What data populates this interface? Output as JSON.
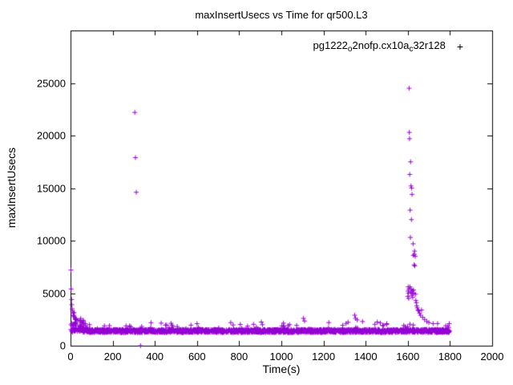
{
  "chart_data": {
    "type": "scatter",
    "title": "maxInsertUsecs vs Time for qr500.L3",
    "xlabel": "Time(s)",
    "ylabel": "maxInsertUsecs",
    "xlim": [
      0,
      2000
    ],
    "ylim": [
      0,
      30000
    ],
    "xticks": [
      0,
      200,
      400,
      600,
      800,
      1000,
      1200,
      1400,
      1600,
      1800,
      2000
    ],
    "yticks": [
      0,
      5000,
      10000,
      15000,
      20000,
      25000
    ],
    "grid": false,
    "legend_position": "top-right-inside",
    "series": [
      {
        "name": "pg1222_o2nofp.cx10a_c32r128",
        "color": "#9400d3",
        "marker": "plus"
      }
    ],
    "outliers": [
      [
        2,
        7200
      ],
      [
        3,
        5400
      ],
      [
        5,
        4400
      ],
      [
        6,
        3900
      ],
      [
        8,
        3500
      ],
      [
        10,
        3300
      ],
      [
        12,
        3100
      ],
      [
        15,
        2900
      ],
      [
        18,
        2750
      ],
      [
        22,
        2600
      ],
      [
        28,
        2500
      ],
      [
        35,
        2400
      ],
      [
        45,
        2300
      ],
      [
        55,
        2200
      ],
      [
        70,
        2100
      ],
      [
        90,
        2000
      ],
      [
        305,
        22200
      ],
      [
        308,
        17900
      ],
      [
        312,
        14600
      ],
      [
        332,
        0
      ],
      [
        430,
        2150
      ],
      [
        600,
        2100
      ],
      [
        760,
        2200
      ],
      [
        905,
        2250
      ],
      [
        1010,
        2150
      ],
      [
        1105,
        2600
      ],
      [
        1110,
        2350
      ],
      [
        1225,
        2200
      ],
      [
        1348,
        2900
      ],
      [
        1352,
        2600
      ],
      [
        1360,
        2450
      ],
      [
        1385,
        2300
      ],
      [
        1455,
        2250
      ],
      [
        1500,
        2100
      ],
      [
        1600,
        4700
      ],
      [
        1601,
        5200
      ],
      [
        1602,
        5600
      ],
      [
        1603,
        5000
      ],
      [
        1604,
        4500
      ],
      [
        1605,
        5400
      ],
      [
        1606,
        24500
      ],
      [
        1607,
        20300
      ],
      [
        1608,
        19700
      ],
      [
        1609,
        16300
      ],
      [
        1610,
        5600
      ],
      [
        1611,
        12900
      ],
      [
        1612,
        10300
      ],
      [
        1613,
        17500
      ],
      [
        1614,
        5100
      ],
      [
        1615,
        15200
      ],
      [
        1616,
        5400
      ],
      [
        1617,
        12000
      ],
      [
        1618,
        15000
      ],
      [
        1619,
        4800
      ],
      [
        1620,
        14400
      ],
      [
        1621,
        5200
      ],
      [
        1622,
        5000
      ],
      [
        1623,
        4600
      ],
      [
        1625,
        9700
      ],
      [
        1626,
        8600
      ],
      [
        1627,
        5300
      ],
      [
        1628,
        5000
      ],
      [
        1630,
        7700
      ],
      [
        1631,
        8700
      ],
      [
        1632,
        9000
      ],
      [
        1633,
        7600
      ],
      [
        1635,
        8500
      ],
      [
        1636,
        4900
      ],
      [
        1638,
        4300
      ],
      [
        1640,
        4100
      ],
      [
        1642,
        3800
      ],
      [
        1645,
        3600
      ],
      [
        1648,
        3400
      ],
      [
        1652,
        3300
      ],
      [
        1656,
        3100
      ],
      [
        1660,
        2900
      ],
      [
        1665,
        3400
      ],
      [
        1670,
        2700
      ],
      [
        1680,
        2500
      ],
      [
        1690,
        2300
      ],
      [
        1700,
        2200
      ],
      [
        1720,
        2100
      ],
      [
        1780,
        1900
      ],
      [
        1790,
        1850
      ]
    ],
    "band": {
      "x_min": 0,
      "x_max": 1800,
      "n": 2200,
      "y_base": 1250,
      "y_spread": 300,
      "spike_chance": 0.04,
      "spike_extra": 700,
      "early_x": 90,
      "early_extra": 2600,
      "seed": 42
    }
  },
  "labels": {
    "title": "maxInsertUsecs vs Time for qr500.L3",
    "xlabel": "Time(s)",
    "ylabel": "maxInsertUsecs"
  },
  "legend": {
    "p1": "pg1222",
    "s1": "o",
    "p2": "2nofp.cx10a",
    "s2": "c",
    "p3": "32r128",
    "marker": "+"
  }
}
